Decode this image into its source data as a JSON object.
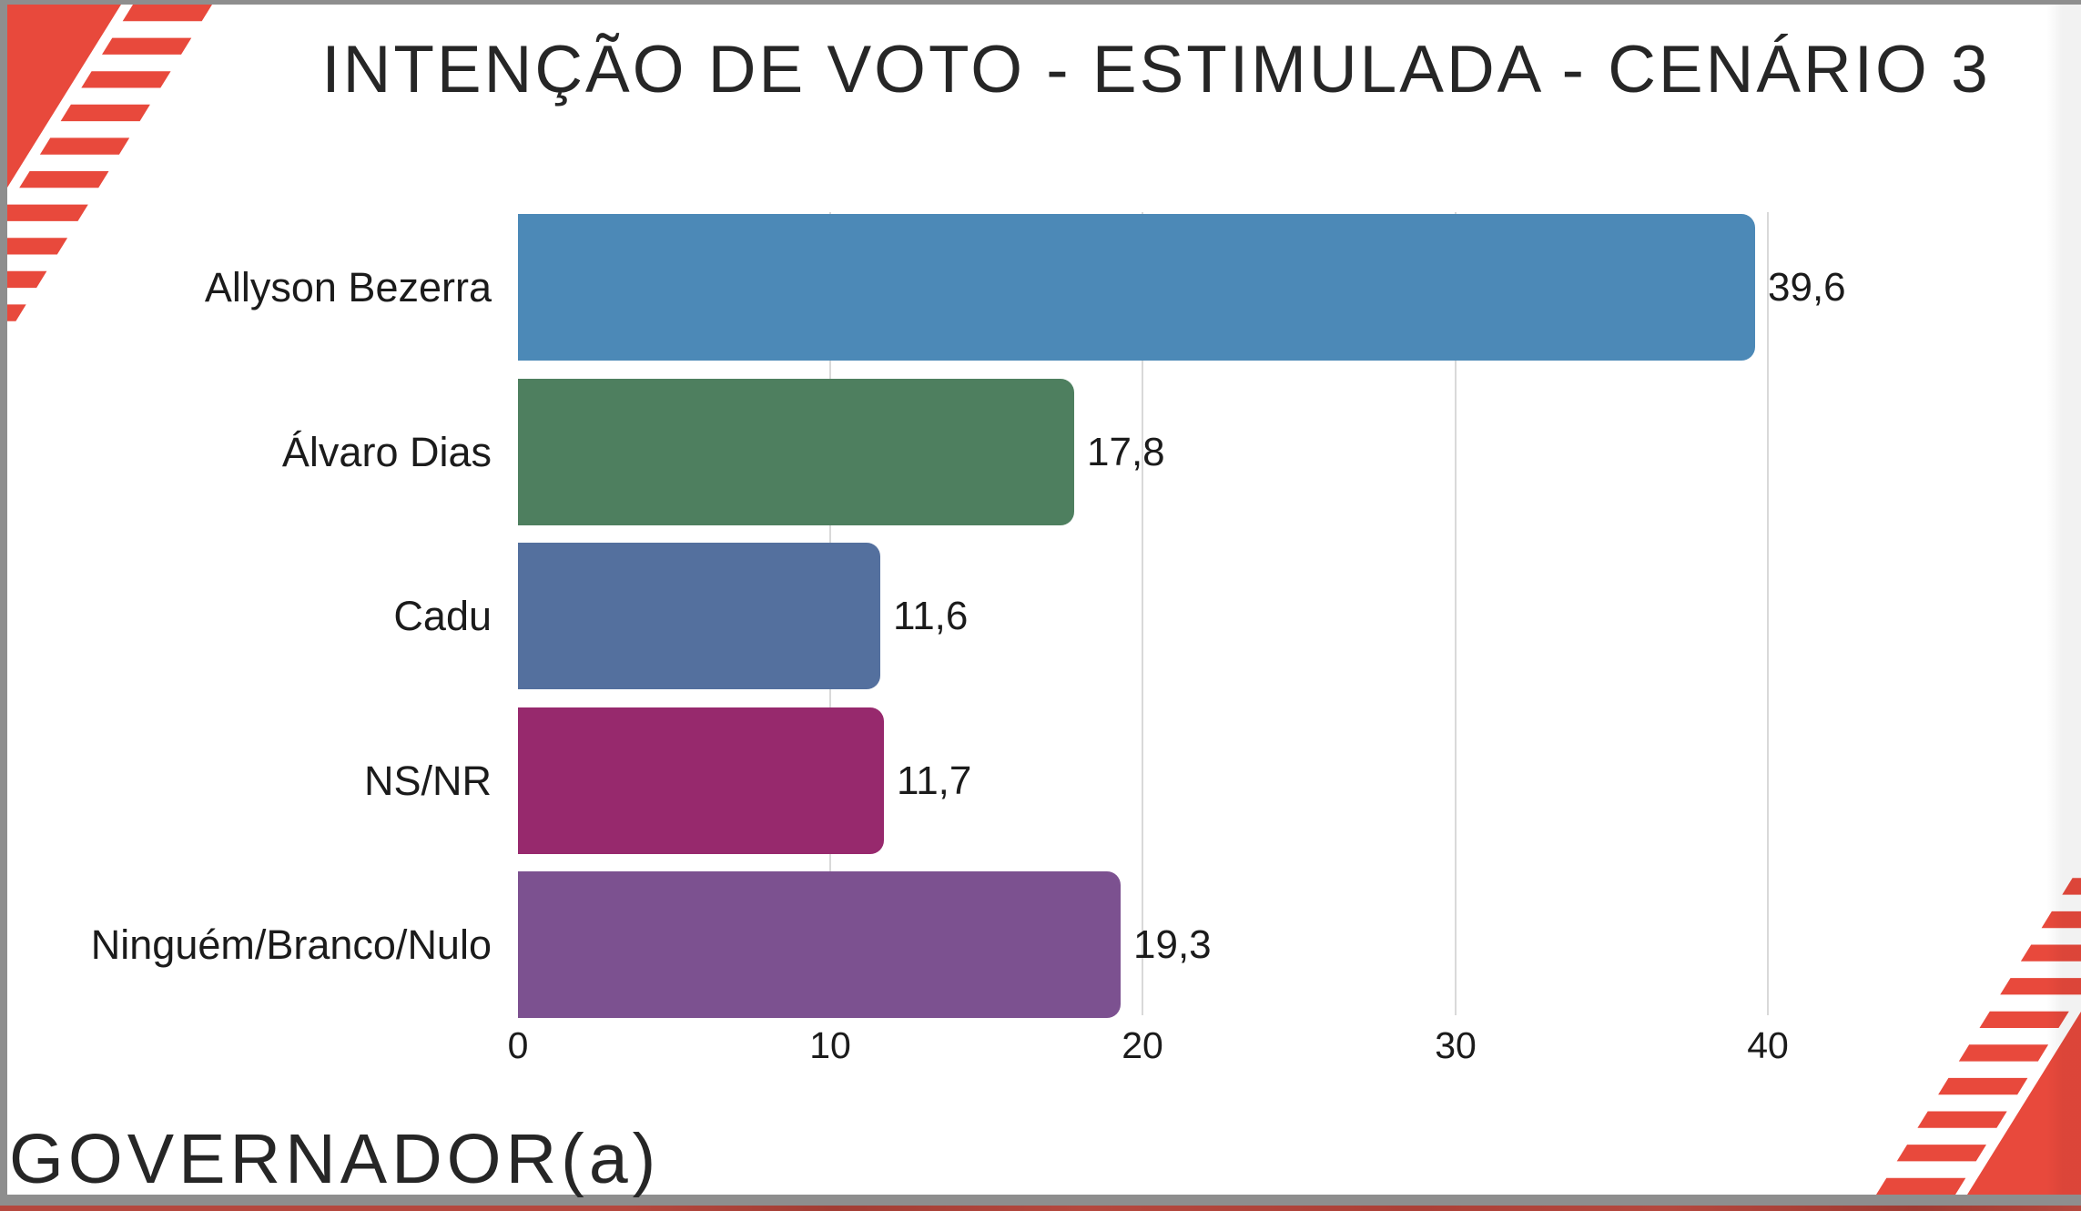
{
  "slide": {
    "title": "INTENÇÃO DE VOTO - ESTIMULADA - CENÁRIO 3",
    "footer": "GOVERNADOR(a)",
    "accent_red": "#E8493C",
    "background": "#FFFFFF"
  },
  "window": {
    "frame_color": "#8E8E8E",
    "next_slide_strip_color": "#B5483E"
  },
  "chart_data": {
    "type": "bar",
    "orientation": "horizontal",
    "title": "INTENÇÃO DE VOTO - ESTIMULADA - CENÁRIO 3",
    "categories": [
      "Allyson Bezerra",
      "Álvaro Dias",
      "Cadu",
      "NS/NR",
      "Ninguém/Branco/Nulo"
    ],
    "values": [
      39.6,
      17.8,
      11.6,
      11.7,
      19.3
    ],
    "value_labels": [
      "39,6",
      "17,8",
      "11,6",
      "11,7",
      "19,3"
    ],
    "bar_colors": [
      "#4C89B7",
      "#4E7F5F",
      "#54709E",
      "#97296D",
      "#7C5190"
    ],
    "x_ticks": [
      0,
      10,
      20,
      30,
      40
    ],
    "x_tick_labels": [
      "0",
      "10",
      "20",
      "30",
      "40"
    ],
    "xlim": [
      0,
      45.5
    ],
    "grid": "vertical",
    "gridline_color": "#D9D9D9",
    "xlabel": "",
    "ylabel": ""
  }
}
